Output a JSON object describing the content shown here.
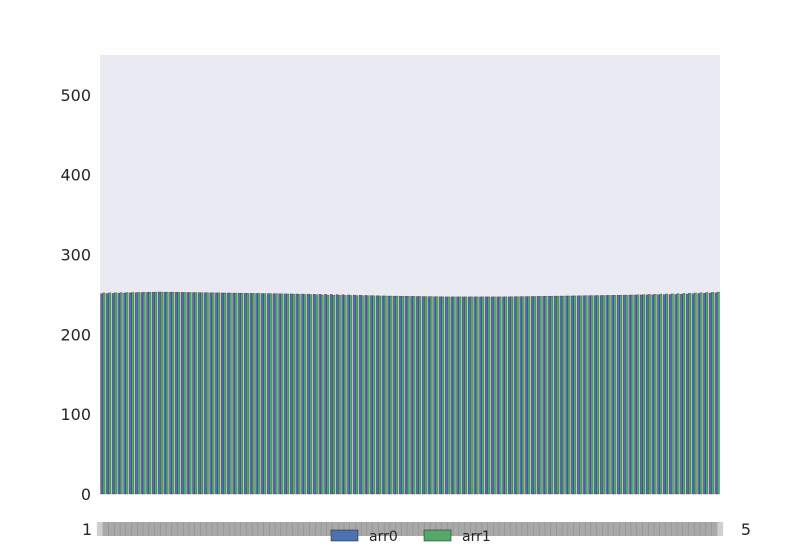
{
  "chart_data": {
    "type": "bar",
    "title": "",
    "xlabel": "",
    "ylabel": "",
    "ylim": [
      0,
      550
    ],
    "yticks": [
      0,
      100,
      200,
      300,
      400,
      500
    ],
    "grid": false,
    "legend": {
      "placement": "bottom-center",
      "position": "overlapping the x tick labels"
    },
    "x_tick_label_first": "1",
    "x_tick_label_last": "5",
    "categories_count": 108,
    "categories_note": "x tick labels are dense and overlapping; only the outer characters are legible",
    "series": [
      {
        "name": "arr0",
        "color": "#4c72b0",
        "values_profile": [
          [
            0,
            251
          ],
          [
            10,
            253
          ],
          [
            20,
            252
          ],
          [
            30,
            251
          ],
          [
            40,
            250
          ],
          [
            50,
            248
          ],
          [
            60,
            247
          ],
          [
            70,
            247
          ],
          [
            80,
            248
          ],
          [
            90,
            249
          ],
          [
            100,
            250
          ],
          [
            107,
            252
          ]
        ]
      },
      {
        "name": "arr1",
        "color": "#55a868",
        "values_profile": [
          [
            0,
            252
          ],
          [
            10,
            253
          ],
          [
            20,
            252
          ],
          [
            30,
            251
          ],
          [
            40,
            249
          ],
          [
            50,
            248
          ],
          [
            60,
            247
          ],
          [
            70,
            247
          ],
          [
            80,
            248
          ],
          [
            90,
            249
          ],
          [
            100,
            251
          ],
          [
            107,
            253
          ]
        ]
      }
    ]
  },
  "style": {
    "axes_background": "#eaeaf2",
    "text_color": "#262626"
  }
}
